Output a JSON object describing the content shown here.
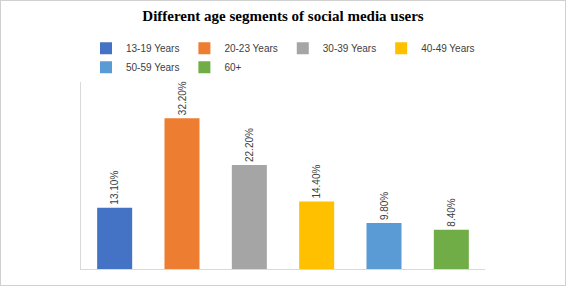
{
  "chart_data": {
    "type": "bar",
    "title": "Different age segments of social media users",
    "categories": [
      "13-19 Years",
      "20-23 Years",
      "30-39 Years",
      "40-49 Years",
      "50-59 Years",
      "60+"
    ],
    "values": [
      13.1,
      32.2,
      22.2,
      14.4,
      9.8,
      8.4
    ],
    "value_labels": [
      "13.10%",
      "32.20%",
      "22.20%",
      "14.40%",
      "9.80%",
      "8.40%"
    ],
    "colors": [
      "#4472c4",
      "#ed7d31",
      "#a5a5a5",
      "#ffc000",
      "#5b9bd5",
      "#70ad47"
    ],
    "ylim": [
      0,
      40
    ],
    "grid": false,
    "legend": "top",
    "data_labels": true,
    "tick_labels": false
  }
}
